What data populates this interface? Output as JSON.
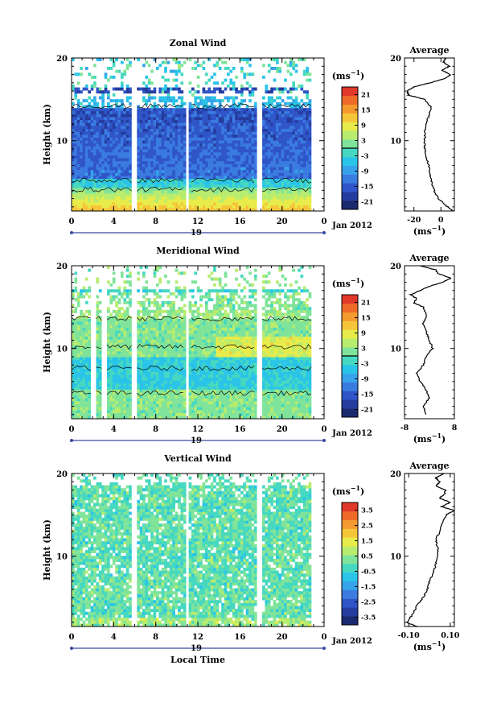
{
  "figure": {
    "date_label": "Jan 2012",
    "day_label": "19",
    "xlabel": "Local Time"
  },
  "colormap": [
    "#1a2a6e",
    "#243c9e",
    "#2f55c8",
    "#3a7be0",
    "#36a3ea",
    "#2ac4e8",
    "#46d8c0",
    "#7fe49a",
    "#b8ec6e",
    "#e8ec4a",
    "#f5c53a",
    "#f59a2e",
    "#ee6a28",
    "#e0382a"
  ],
  "chart_data": [
    {
      "type": "heatmap",
      "title": "Zonal Wind",
      "ylabel": "Height (km)",
      "x_ticks": [
        "0",
        "4",
        "8",
        "12",
        "16",
        "20",
        "0"
      ],
      "y_ticks": [
        "20",
        "10"
      ],
      "xlim": [
        0,
        24
      ],
      "ylim": [
        1.5,
        20
      ],
      "colorbar": {
        "unit": "(ms",
        "unit_exp": "−1",
        "unit_close": ")",
        "ticks": [
          "21",
          "15",
          "9",
          "3",
          "-3",
          "-9",
          "-15",
          "-21"
        ],
        "range": [
          -24,
          24
        ]
      },
      "data_gaps_hours": [
        [
          5.8,
          6.2
        ],
        [
          10.8,
          11.2
        ],
        [
          17.6,
          18.0
        ]
      ],
      "profile": {
        "title": "Average",
        "x_ticks": [
          "-20",
          "0"
        ],
        "xlim": [
          -27,
          10
        ],
        "unit": "(ms",
        "unit_exp": "−1",
        "unit_close": ")",
        "heights": [
          1.5,
          2,
          3,
          4,
          5,
          6,
          7,
          8,
          9,
          10,
          11,
          12,
          13,
          14,
          15,
          15.5,
          16,
          16.5,
          17,
          17.5,
          18,
          18.5,
          19,
          19.5,
          20
        ],
        "values": [
          9,
          5,
          -2,
          -5,
          -7,
          -8,
          -9,
          -11,
          -12,
          -12,
          -12,
          -11,
          -9,
          -7,
          -12,
          -24,
          -25,
          -20,
          -8,
          3,
          7,
          1,
          6,
          2,
          4
        ]
      }
    },
    {
      "type": "heatmap",
      "title": "Meridional Wind",
      "ylabel": "Height (km)",
      "x_ticks": [
        "0",
        "4",
        "8",
        "12",
        "16",
        "20",
        "0"
      ],
      "y_ticks": [
        "20",
        "10"
      ],
      "xlim": [
        0,
        24
      ],
      "ylim": [
        1.5,
        20
      ],
      "colorbar": {
        "unit": "(ms",
        "unit_exp": "−1",
        "unit_close": ")",
        "ticks": [
          "21",
          "15",
          "9",
          "3",
          "-3",
          "-9",
          "-15",
          "-21"
        ],
        "range": [
          -24,
          24
        ]
      },
      "data_gaps_hours": [
        [
          1.9,
          2.3
        ],
        [
          2.9,
          3.3
        ],
        [
          5.8,
          6.2
        ],
        [
          10.8,
          11.2
        ],
        [
          17.6,
          18.0
        ]
      ],
      "profile": {
        "title": "Average",
        "x_ticks": [
          "-8",
          "8"
        ],
        "xlim": [
          -8,
          8
        ],
        "unit": "(ms",
        "unit_exp": "−1",
        "unit_close": ")",
        "heights": [
          2,
          3,
          4,
          5,
          6,
          7,
          8,
          9,
          10,
          11,
          12,
          13,
          14,
          15,
          15.5,
          16,
          16.5,
          17,
          17.5,
          18,
          18.5,
          19,
          19.5,
          20
        ],
        "values": [
          -1,
          -2,
          0,
          -1,
          -3,
          -4,
          -2,
          -1,
          1,
          0,
          -1,
          -2,
          -1,
          -2,
          -5,
          -4,
          -6,
          -3,
          0,
          4,
          7,
          3,
          2,
          -3
        ]
      }
    },
    {
      "type": "heatmap",
      "title": "Vertical Wind",
      "ylabel": "Height (km)",
      "x_ticks": [
        "0",
        "4",
        "8",
        "12",
        "16",
        "20",
        "0"
      ],
      "y_ticks": [
        "20",
        "10"
      ],
      "xlim": [
        0,
        24
      ],
      "ylim": [
        1.5,
        20
      ],
      "colorbar": {
        "unit": "(ms",
        "unit_exp": "−1",
        "unit_close": ")",
        "ticks": [
          "3.5",
          "2.5",
          "1.5",
          "0.5",
          "-0.5",
          "-1.5",
          "-2.5",
          "-3.5"
        ],
        "range": [
          -4,
          4
        ]
      },
      "data_gaps_hours": [
        [
          5.8,
          6.2
        ],
        [
          10.8,
          11.2
        ],
        [
          17.6,
          18.0
        ]
      ],
      "profile": {
        "title": "Average",
        "x_ticks": [
          "-0.10",
          "0.10"
        ],
        "xlim": [
          -0.12,
          0.12
        ],
        "unit": "(ms",
        "unit_exp": "−1",
        "unit_close": ")",
        "heights": [
          1.5,
          2,
          3,
          4,
          5,
          6,
          7,
          8,
          9,
          10,
          11,
          12,
          13,
          14,
          15,
          15.5,
          16,
          16.5,
          17,
          17.5,
          18,
          18.5,
          19,
          19.5,
          20
        ],
        "values": [
          -0.06,
          -0.11,
          -0.08,
          -0.06,
          -0.03,
          -0.01,
          0.0,
          0.02,
          0.03,
          0.04,
          0.04,
          0.03,
          0.05,
          0.06,
          0.08,
          0.12,
          0.06,
          0.1,
          0.05,
          0.07,
          0.08,
          0.03,
          0.05,
          0.03,
          0.07
        ]
      }
    }
  ]
}
